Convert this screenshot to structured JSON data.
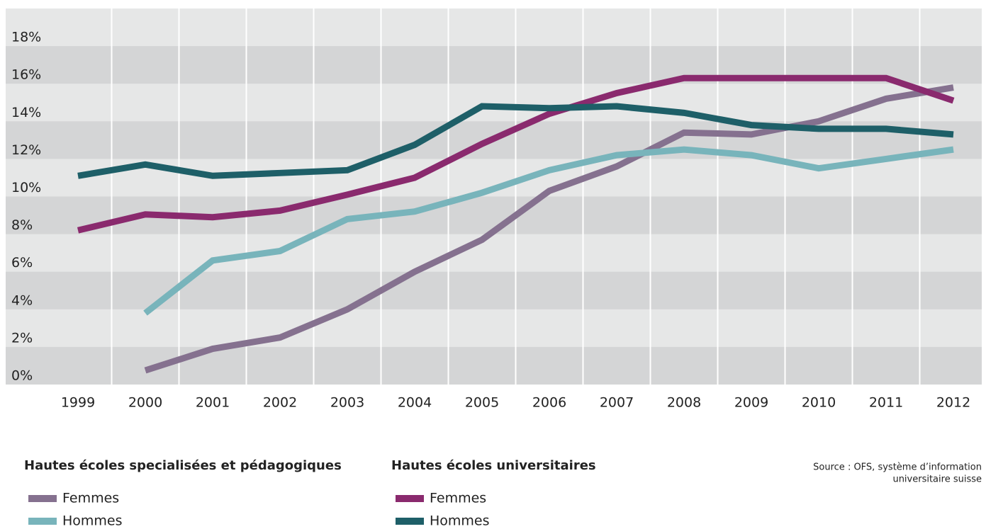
{
  "chart_data": {
    "type": "line",
    "categories": [
      "1999",
      "2000",
      "2001",
      "2002",
      "2003",
      "2004",
      "2005",
      "2006",
      "2007",
      "2008",
      "2009",
      "2010",
      "2011",
      "2012"
    ],
    "ylim": [
      0,
      20
    ],
    "yticks": [
      {
        "value": 0,
        "label": "0%"
      },
      {
        "value": 2,
        "label": "2%"
      },
      {
        "value": 4,
        "label": "4%"
      },
      {
        "value": 6,
        "label": "6%"
      },
      {
        "value": 8,
        "label": "8%"
      },
      {
        "value": 10,
        "label": "10%"
      },
      {
        "value": 12,
        "label": "12%"
      },
      {
        "value": 14,
        "label": "14%"
      },
      {
        "value": 16,
        "label": "16%"
      },
      {
        "value": 18,
        "label": "18%"
      }
    ],
    "legend_titles": [
      "Hautes écoles specialisées et pédagogiques",
      "Hautes écoles universitaires"
    ],
    "series": [
      {
        "name": "Femmes",
        "color": "#85718f",
        "values": [
          null,
          0.75,
          1.9,
          2.5,
          4.0,
          6.0,
          7.7,
          10.3,
          11.6,
          13.4,
          13.3,
          14.0,
          15.2,
          15.8
        ]
      },
      {
        "name": "Hommes",
        "color": "#78b4bb",
        "values": [
          null,
          3.8,
          6.6,
          7.1,
          8.8,
          9.2,
          10.2,
          11.4,
          12.2,
          12.5,
          12.2,
          11.5,
          12.0,
          12.5
        ]
      },
      {
        "name": "Femmes",
        "color": "#8a2a6e",
        "values": [
          8.2,
          9.05,
          8.9,
          9.25,
          10.1,
          11.0,
          12.8,
          14.4,
          15.5,
          16.3,
          16.3,
          16.3,
          16.3,
          15.1
        ]
      },
      {
        "name": "Hommes",
        "color": "#1e5f68",
        "values": [
          11.1,
          11.7,
          11.1,
          11.25,
          11.4,
          12.75,
          14.8,
          14.7,
          14.8,
          14.45,
          13.8,
          13.6,
          13.6,
          13.3
        ]
      }
    ],
    "source": [
      "Source : OFS, système d’information",
      "universitaire suisse"
    ]
  }
}
